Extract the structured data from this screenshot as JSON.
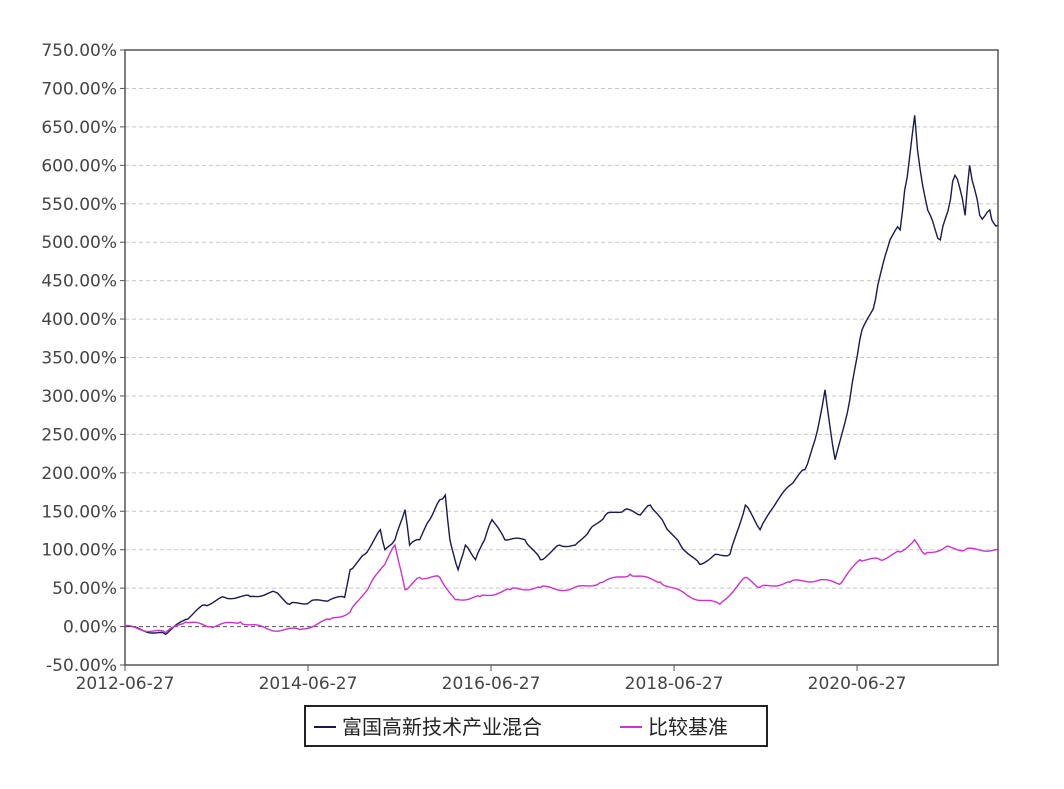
{
  "chart_data": {
    "type": "line",
    "title": "",
    "xlabel": "",
    "ylabel": "",
    "x_unit": "years since 2012-06-27",
    "xlim": [
      0,
      9.54
    ],
    "ylim": [
      -50,
      750
    ],
    "grid": true,
    "legend_position": "bottom-center",
    "y_ticks": [
      -50,
      0,
      50,
      100,
      150,
      200,
      250,
      300,
      350,
      400,
      450,
      500,
      550,
      600,
      650,
      700,
      750
    ],
    "y_tick_labels": [
      "-50.00%",
      "0.00%",
      "50.00%",
      "100.00%",
      "150.00%",
      "200.00%",
      "250.00%",
      "300.00%",
      "350.00%",
      "400.00%",
      "450.00%",
      "500.00%",
      "550.00%",
      "600.00%",
      "650.00%",
      "700.00%",
      "750.00%"
    ],
    "x_ticks": [
      0,
      2,
      4,
      6,
      8
    ],
    "x_tick_labels": [
      "2012-06-27",
      "2014-06-27",
      "2016-06-27",
      "2018-06-27",
      "2020-06-27"
    ],
    "series": [
      {
        "name": "富国高新技术产业混合",
        "color": "#1a1a4e",
        "points": [
          [
            0,
            0
          ],
          [
            0.44,
            -10
          ],
          [
            0.66,
            9
          ],
          [
            0.87,
            28
          ],
          [
            1.09,
            38
          ],
          [
            1.37,
            39
          ],
          [
            1.64,
            45
          ],
          [
            1.8,
            29
          ],
          [
            2.02,
            32
          ],
          [
            2.24,
            35
          ],
          [
            2.4,
            38
          ],
          [
            2.46,
            74
          ],
          [
            2.62,
            94
          ],
          [
            2.79,
            126
          ],
          [
            2.84,
            100
          ],
          [
            2.95,
            113
          ],
          [
            3.06,
            152
          ],
          [
            3.11,
            106
          ],
          [
            3.22,
            113
          ],
          [
            3.33,
            139
          ],
          [
            3.44,
            165
          ],
          [
            3.5,
            171
          ],
          [
            3.55,
            113
          ],
          [
            3.64,
            74
          ],
          [
            3.72,
            106
          ],
          [
            3.83,
            87
          ],
          [
            3.93,
            113
          ],
          [
            4.01,
            139
          ],
          [
            4.15,
            113
          ],
          [
            4.37,
            113
          ],
          [
            4.54,
            87
          ],
          [
            4.75,
            106
          ],
          [
            4.92,
            106
          ],
          [
            5.08,
            126
          ],
          [
            5.25,
            145
          ],
          [
            5.46,
            152
          ],
          [
            5.63,
            145
          ],
          [
            5.74,
            158
          ],
          [
            5.9,
            132
          ],
          [
            6.07,
            106
          ],
          [
            6.28,
            81
          ],
          [
            6.45,
            94
          ],
          [
            6.61,
            94
          ],
          [
            6.78,
            158
          ],
          [
            6.94,
            126
          ],
          [
            7.1,
            158
          ],
          [
            7.27,
            184
          ],
          [
            7.43,
            204
          ],
          [
            7.54,
            243
          ],
          [
            7.65,
            308
          ],
          [
            7.76,
            217
          ],
          [
            7.92,
            295
          ],
          [
            8.03,
            373
          ],
          [
            8.2,
            425
          ],
          [
            8.36,
            503
          ],
          [
            8.47,
            516
          ],
          [
            8.52,
            568
          ],
          [
            8.63,
            665
          ],
          [
            8.69,
            594
          ],
          [
            8.8,
            535
          ],
          [
            8.91,
            503
          ],
          [
            9.02,
            555
          ],
          [
            9.07,
            587
          ],
          [
            9.18,
            535
          ],
          [
            9.23,
            600
          ],
          [
            9.34,
            535
          ],
          [
            9.45,
            542
          ],
          [
            9.54,
            522
          ]
        ]
      },
      {
        "name": "比较基准",
        "color": "#cc33cc",
        "points": [
          [
            0,
            0
          ],
          [
            0.44,
            -8
          ],
          [
            0.66,
            6
          ],
          [
            0.93,
            0
          ],
          [
            1.26,
            6
          ],
          [
            1.58,
            -4
          ],
          [
            1.91,
            -4
          ],
          [
            2.24,
            9
          ],
          [
            2.46,
            19
          ],
          [
            2.68,
            55
          ],
          [
            2.84,
            81
          ],
          [
            2.95,
            106
          ],
          [
            3.06,
            48
          ],
          [
            3.22,
            64
          ],
          [
            3.44,
            64
          ],
          [
            3.61,
            35
          ],
          [
            3.88,
            39
          ],
          [
            4.21,
            48
          ],
          [
            4.54,
            51
          ],
          [
            4.86,
            48
          ],
          [
            5.19,
            57
          ],
          [
            5.52,
            68
          ],
          [
            5.85,
            58
          ],
          [
            6.17,
            39
          ],
          [
            6.5,
            29
          ],
          [
            6.78,
            64
          ],
          [
            6.94,
            51
          ],
          [
            7.27,
            58
          ],
          [
            7.6,
            61
          ],
          [
            7.81,
            55
          ],
          [
            8.03,
            87
          ],
          [
            8.25,
            87
          ],
          [
            8.47,
            97
          ],
          [
            8.63,
            113
          ],
          [
            8.74,
            94
          ],
          [
            8.96,
            103
          ],
          [
            9.18,
            100
          ],
          [
            9.54,
            100
          ]
        ]
      }
    ]
  }
}
